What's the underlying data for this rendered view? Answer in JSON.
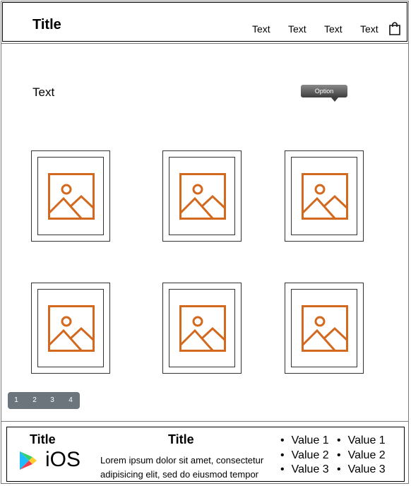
{
  "header": {
    "title": "Title",
    "nav": [
      "Text",
      "Text",
      "Text",
      "Text"
    ],
    "cart_icon": "shopping-bag-icon"
  },
  "content": {
    "label": "Text",
    "tooltip": "Option",
    "image_icon": "image-placeholder-icon",
    "accent_color": "#d2691e",
    "card_count": 6
  },
  "pagination": {
    "pages": [
      "1",
      "2",
      "3",
      "4"
    ]
  },
  "footer": {
    "left_title": "Title",
    "center_title": "Title",
    "store_label": "iOS",
    "store_icon": "google-play-icon",
    "description_line1": "Lorem ipsum dolor sit amet, consectetur",
    "description_line2": "adipisicing elit, sed do eiusmod tempor",
    "list1": [
      "Value 1",
      "Value 2",
      "Value 3"
    ],
    "list2": [
      "Value 1",
      "Value 2",
      "Value 3"
    ]
  }
}
